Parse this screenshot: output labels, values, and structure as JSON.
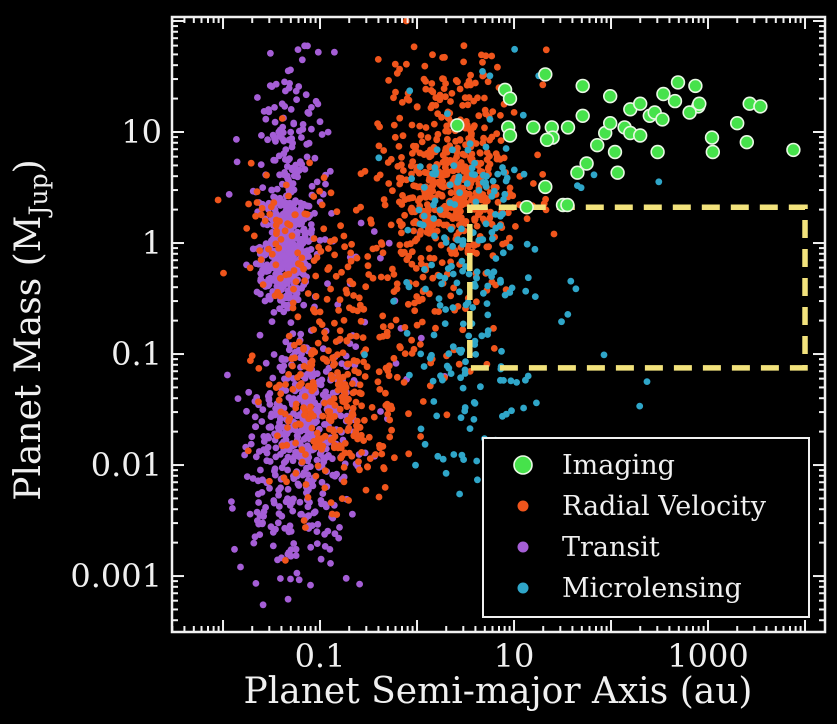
{
  "chart_data": {
    "type": "scatter",
    "title": "",
    "xlabel": "Planet Semi-major Axis (au)",
    "ylabel_parts": {
      "main": "Planet Mass (M",
      "sub": "Jup",
      "close": ")"
    },
    "x_scale": "log",
    "y_scale": "log",
    "xlim_au": [
      0.003,
      16000
    ],
    "ylim_mjup": [
      0.00031,
      110
    ],
    "grid": "off",
    "background_color": "#000000",
    "axis_color": "#f0f0f0",
    "x_ticks_labeled": [
      {
        "value": 0.1,
        "label": "0.1"
      },
      {
        "value": 10,
        "label": "10"
      },
      {
        "value": 1000,
        "label": "1000"
      }
    ],
    "x_major_decades": [
      -2,
      -1,
      0,
      1,
      2,
      3,
      4
    ],
    "y_ticks_labeled": [
      {
        "value": 10,
        "label": "10"
      },
      {
        "value": 1,
        "label": "1"
      },
      {
        "value": 0.1,
        "label": "0.1"
      },
      {
        "value": 0.01,
        "label": "0.01"
      },
      {
        "value": 0.001,
        "label": "0.001"
      }
    ],
    "y_major_decades": [
      -3,
      -2,
      -1,
      0,
      1,
      2
    ],
    "highlight_box": {
      "name": "dashed-region",
      "x_range_au": [
        3.5,
        10000
      ],
      "y_range_mjup": [
        0.075,
        2.1
      ],
      "color": "#f2e27c",
      "style": "dashed"
    },
    "legend": {
      "position": "lower right",
      "border_color": "#f0f0f0",
      "fill_color": "#000000",
      "entries": [
        {
          "label": "Imaging",
          "color": "#46e24b",
          "marker": "large-circle"
        },
        {
          "label": "Radial Velocity",
          "color": "#f0551c",
          "marker": "small-circle"
        },
        {
          "label": "Transit",
          "color": "#a55ed6",
          "marker": "small-circle"
        },
        {
          "label": "Microlensing",
          "color": "#2fa6c9",
          "marker": "small-circle"
        }
      ]
    },
    "series": [
      {
        "name": "Transit",
        "color": "#a55ed6",
        "marker_radius": 3.4,
        "distribution": "log10-gaussian-clusters",
        "clusters": [
          {
            "n": 400,
            "log_a_mean": -1.36,
            "log_a_sd": 0.13,
            "log_m_mean": -0.08,
            "log_m_sd": 0.26
          },
          {
            "n": 150,
            "log_a_mean": -1.25,
            "log_a_sd": 0.22,
            "log_m_mean": 0.8,
            "log_m_sd": 0.45
          },
          {
            "n": 380,
            "log_a_mean": -1.18,
            "log_a_sd": 0.26,
            "log_m_mean": -1.65,
            "log_m_sd": 0.42
          },
          {
            "n": 90,
            "log_a_mean": -1.25,
            "log_a_sd": 0.28,
            "log_m_mean": -2.55,
            "log_m_sd": 0.45
          },
          {
            "n": 25,
            "log_a_mean": -0.5,
            "log_a_sd": 0.35,
            "log_m_mean": -0.9,
            "log_m_sd": 0.55
          }
        ]
      },
      {
        "name": "Radial Velocity",
        "color": "#f0551c",
        "marker_radius": 3.4,
        "distribution": "log10-gaussian-clusters",
        "clusters": [
          {
            "n": 470,
            "log_a_mean": 0.33,
            "log_a_sd": 0.34,
            "log_m_mean": 0.55,
            "log_m_sd": 0.42
          },
          {
            "n": 70,
            "log_a_mean": -1.3,
            "log_a_sd": 0.25,
            "log_m_mean": 0.05,
            "log_m_sd": 0.4
          },
          {
            "n": 240,
            "log_a_mean": -0.85,
            "log_a_sd": 0.33,
            "log_m_mean": -1.5,
            "log_m_sd": 0.42
          },
          {
            "n": 150,
            "log_a_mean": -0.35,
            "log_a_sd": 0.42,
            "log_m_mean": -0.5,
            "log_m_sd": 0.5
          },
          {
            "n": 45,
            "log_a_mean": 0.2,
            "log_a_sd": 0.45,
            "log_m_mean": 1.42,
            "log_m_sd": 0.22
          },
          {
            "n": 25,
            "log_a_mean": 0.9,
            "log_a_sd": 0.35,
            "log_m_mean": 0.1,
            "log_m_sd": 0.5
          }
        ]
      },
      {
        "name": "Microlensing",
        "color": "#2fa6c9",
        "marker_radius": 3.4,
        "distribution": "log10-gaussian-clusters",
        "clusters": [
          {
            "n": 130,
            "log_a_mean": 0.5,
            "log_a_sd": 0.3,
            "log_m_mean": 0.15,
            "log_m_sd": 0.65
          },
          {
            "n": 80,
            "log_a_mean": 0.55,
            "log_a_sd": 0.4,
            "log_m_mean": -1.2,
            "log_m_sd": 0.55
          },
          {
            "n": 12,
            "log_a_mean": 1.6,
            "log_a_sd": 0.5,
            "log_m_mean": -0.3,
            "log_m_sd": 0.8
          }
        ]
      },
      {
        "name": "Imaging",
        "color": "#46e24b",
        "edge_color": "#e9f8e4",
        "marker_radius": 6.4,
        "distribution": "explicit-points",
        "points_au_mjup": [
          [
            21,
            33
          ],
          [
            8.1,
            24
          ],
          [
            9.1,
            20
          ],
          [
            51,
            26
          ],
          [
            98,
            21
          ],
          [
            347,
            22
          ],
          [
            457,
            19
          ],
          [
            490,
            28
          ],
          [
            741,
            26
          ],
          [
            794,
            17
          ],
          [
            158,
            16
          ],
          [
            200,
            18
          ],
          [
            251,
            14
          ],
          [
            282,
            15
          ],
          [
            339,
            13
          ],
          [
            813,
            18
          ],
          [
            646,
            15
          ],
          [
            2000,
            12
          ],
          [
            2690,
            18
          ],
          [
            3470,
            17
          ],
          [
            1100,
            8.9
          ],
          [
            1120,
            6.6
          ],
          [
            2510,
            8.1
          ],
          [
            7590,
            6.9
          ],
          [
            8.7,
            11
          ],
          [
            9.1,
            9.3
          ],
          [
            15.8,
            11
          ],
          [
            24.5,
            11
          ],
          [
            25,
            8.9
          ],
          [
            21.9,
            8.5
          ],
          [
            36,
            11
          ],
          [
            51,
            14
          ],
          [
            72,
            7.6
          ],
          [
            56,
            5.2
          ],
          [
            45,
            4.3
          ],
          [
            87,
            9.8
          ],
          [
            98,
            12
          ],
          [
            110,
            6.6
          ],
          [
            117,
            4.3
          ],
          [
            138,
            11
          ],
          [
            158,
            9.8
          ],
          [
            200,
            9.3
          ],
          [
            302,
            6.6
          ],
          [
            21,
            3.2
          ],
          [
            32,
            2.2
          ],
          [
            13.5,
            2.1
          ],
          [
            35.5,
            2.2
          ],
          [
            2.6,
            11.5
          ]
        ]
      }
    ]
  }
}
